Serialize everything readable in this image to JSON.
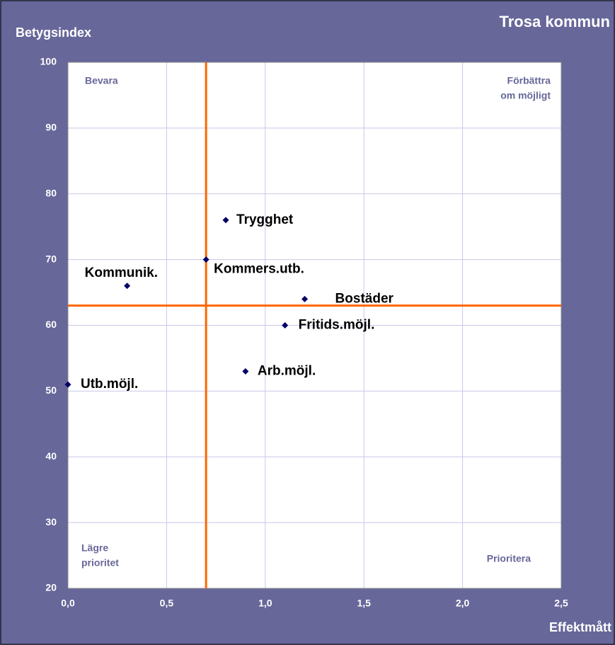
{
  "chart_data": {
    "type": "scatter",
    "title": "Trosa kommun",
    "y_label": "Betygsindex",
    "x_label": "Effektmått",
    "x": [
      0.8,
      0.7,
      0.3,
      1.2,
      1.1,
      0.9,
      0.0
    ],
    "values": [
      76,
      70,
      66,
      64,
      60,
      53,
      51
    ],
    "point_labels": [
      "Trygghet",
      "Kommers.utb.",
      "Kommunik.",
      "Bostäder",
      "Fritids.möjl.",
      "Arb.möjl.",
      "Utb.möjl."
    ],
    "color": "#000066",
    "xlim": [
      0,
      2.5
    ],
    "ylim": [
      20,
      100
    ],
    "xticks": [
      {
        "value": 0,
        "label": "0,0"
      },
      {
        "value": 0.5,
        "label": "0,5"
      },
      {
        "value": 1,
        "label": "1,0"
      },
      {
        "value": 1.5,
        "label": "1,5"
      },
      {
        "value": 2,
        "label": "2,0"
      },
      {
        "value": 2.5,
        "label": "2,5"
      }
    ],
    "yticks": [
      20,
      30,
      40,
      50,
      60,
      70,
      80,
      90,
      100
    ],
    "grid": true,
    "reference_lines": {
      "x": 0.7,
      "y": 63,
      "color": "#ff6600"
    },
    "quadrant_labels": {
      "top_left": [
        "Bevara"
      ],
      "top_right": [
        "Förbättra",
        "om möjligt"
      ],
      "bottom_left": [
        "Lägre",
        "prioritet"
      ],
      "bottom_right": [
        "Prioritera"
      ]
    }
  }
}
